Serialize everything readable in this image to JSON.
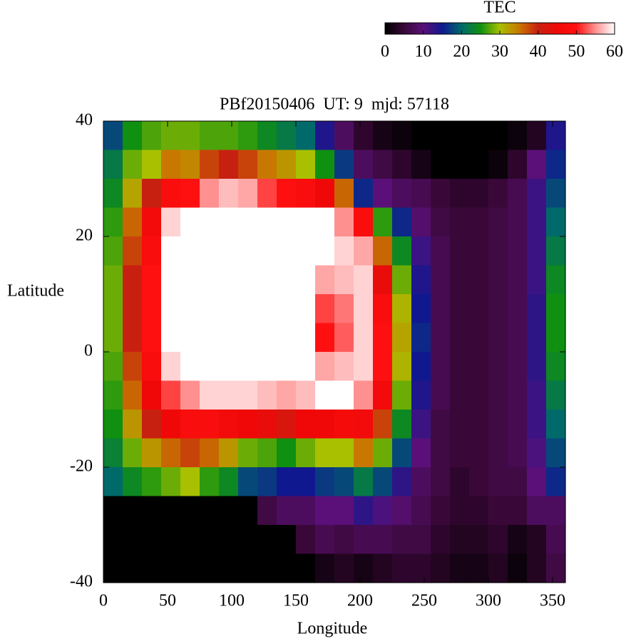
{
  "chart_data": {
    "type": "heatmap",
    "title": "PBf20150406  UT: 9  mjd: 57118",
    "x_label": "Longitude",
    "y_label": "Latitude",
    "x": [
      7.5,
      22.5,
      37.5,
      52.5,
      67.5,
      82.5,
      97.5,
      112.5,
      127.5,
      142.5,
      157.5,
      172.5,
      187.5,
      202.5,
      217.5,
      232.5,
      247.5,
      262.5,
      277.5,
      292.5,
      307.5,
      322.5,
      337.5,
      352.5
    ],
    "y": [
      37.5,
      32.5,
      27.5,
      22.5,
      17.5,
      12.5,
      7.5,
      2.5,
      -2.5,
      -7.5,
      -12.5,
      -17.5,
      -22.5,
      -27.5,
      -32.5,
      -37.5
    ],
    "values": [
      [
        18,
        25,
        27,
        28,
        28,
        27,
        27,
        26,
        24,
        22,
        20,
        14,
        8,
        4,
        2,
        1,
        0,
        0,
        0,
        0,
        0,
        1,
        3,
        14
      ],
      [
        22,
        28,
        30,
        35,
        34,
        38,
        40,
        38,
        35,
        33,
        30,
        25,
        17,
        8,
        6,
        4,
        2,
        0,
        0,
        0,
        1,
        4,
        10,
        16
      ],
      [
        24,
        32,
        40,
        48,
        50,
        55,
        57,
        56,
        52,
        50,
        48,
        45,
        36,
        16,
        10,
        8,
        7,
        5,
        4,
        4,
        5,
        7,
        12,
        18
      ],
      [
        26,
        36,
        46,
        58,
        60,
        60,
        60,
        60,
        60,
        60,
        60,
        60,
        55,
        48,
        26,
        16,
        9,
        6,
        5,
        5,
        6,
        7,
        12,
        20
      ],
      [
        27,
        38,
        48,
        60,
        60,
        60,
        60,
        60,
        60,
        60,
        60,
        60,
        58,
        56,
        36,
        24,
        12,
        7,
        5,
        5,
        6,
        7,
        12,
        22
      ],
      [
        28,
        40,
        50,
        60,
        60,
        60,
        60,
        60,
        60,
        60,
        60,
        56,
        57,
        58,
        44,
        28,
        14,
        7,
        5,
        5,
        6,
        7,
        12,
        24
      ],
      [
        28,
        40,
        50,
        60,
        60,
        60,
        60,
        60,
        60,
        60,
        60,
        52,
        54,
        58,
        48,
        31,
        15,
        7,
        5,
        5,
        6,
        7,
        13,
        25
      ],
      [
        28,
        40,
        50,
        60,
        60,
        60,
        60,
        60,
        60,
        60,
        60,
        50,
        53,
        58,
        50,
        32,
        16,
        7,
        5,
        5,
        6,
        7,
        13,
        25
      ],
      [
        27,
        38,
        48,
        58,
        60,
        60,
        60,
        60,
        60,
        60,
        60,
        56,
        57,
        58,
        50,
        31,
        15,
        7,
        5,
        5,
        6,
        7,
        13,
        24
      ],
      [
        26,
        36,
        45,
        52,
        55,
        58,
        58,
        58,
        57,
        56,
        57,
        60,
        60,
        55,
        46,
        28,
        14,
        7,
        5,
        5,
        6,
        7,
        12,
        22
      ],
      [
        25,
        33,
        40,
        45,
        48,
        48,
        46,
        45,
        44,
        42,
        45,
        45,
        47,
        46,
        38,
        24,
        12,
        6,
        5,
        5,
        6,
        7,
        12,
        20
      ],
      [
        23,
        28,
        33,
        36,
        38,
        36,
        33,
        28,
        27,
        25,
        28,
        30,
        30,
        35,
        28,
        18,
        10,
        6,
        5,
        5,
        6,
        7,
        11,
        18
      ],
      [
        20,
        24,
        26,
        28,
        30,
        26,
        24,
        18,
        17,
        15,
        15,
        17,
        18,
        22,
        18,
        13,
        8,
        6,
        4,
        5,
        6,
        6,
        10,
        16
      ],
      [
        0,
        0,
        0,
        0,
        0,
        0,
        0,
        0,
        6,
        8,
        8,
        10,
        10,
        13,
        11,
        9,
        7,
        5,
        4,
        4,
        5,
        5,
        8,
        8
      ],
      [
        0,
        0,
        0,
        0,
        0,
        0,
        0,
        0,
        0,
        0,
        5,
        7,
        6,
        7,
        7,
        6,
        6,
        4,
        3,
        3,
        4,
        2,
        3,
        7
      ],
      [
        0,
        0,
        0,
        0,
        0,
        0,
        0,
        0,
        0,
        0,
        0,
        2,
        3,
        2,
        3,
        4,
        4,
        3,
        2,
        2,
        3,
        1,
        3,
        6
      ]
    ],
    "xlim": [
      0,
      360
    ],
    "xticks": [
      0,
      50,
      100,
      150,
      200,
      250,
      300,
      350
    ],
    "ylim": [
      -40,
      40
    ],
    "yticks": [
      -40,
      -20,
      0,
      20,
      40
    ],
    "colorbar": {
      "label": "TEC",
      "lim": [
        0,
        60
      ],
      "ticks": [
        0,
        10,
        20,
        30,
        40,
        50,
        60
      ],
      "colors": [
        "#000000",
        "#3a0838",
        "#5a1078",
        "#101890",
        "#006a6a",
        "#109010",
        "#a8c000",
        "#c87800",
        "#c82010",
        "#f00808",
        "#ff1010",
        "#ff9090",
        "#ffffff"
      ]
    }
  }
}
